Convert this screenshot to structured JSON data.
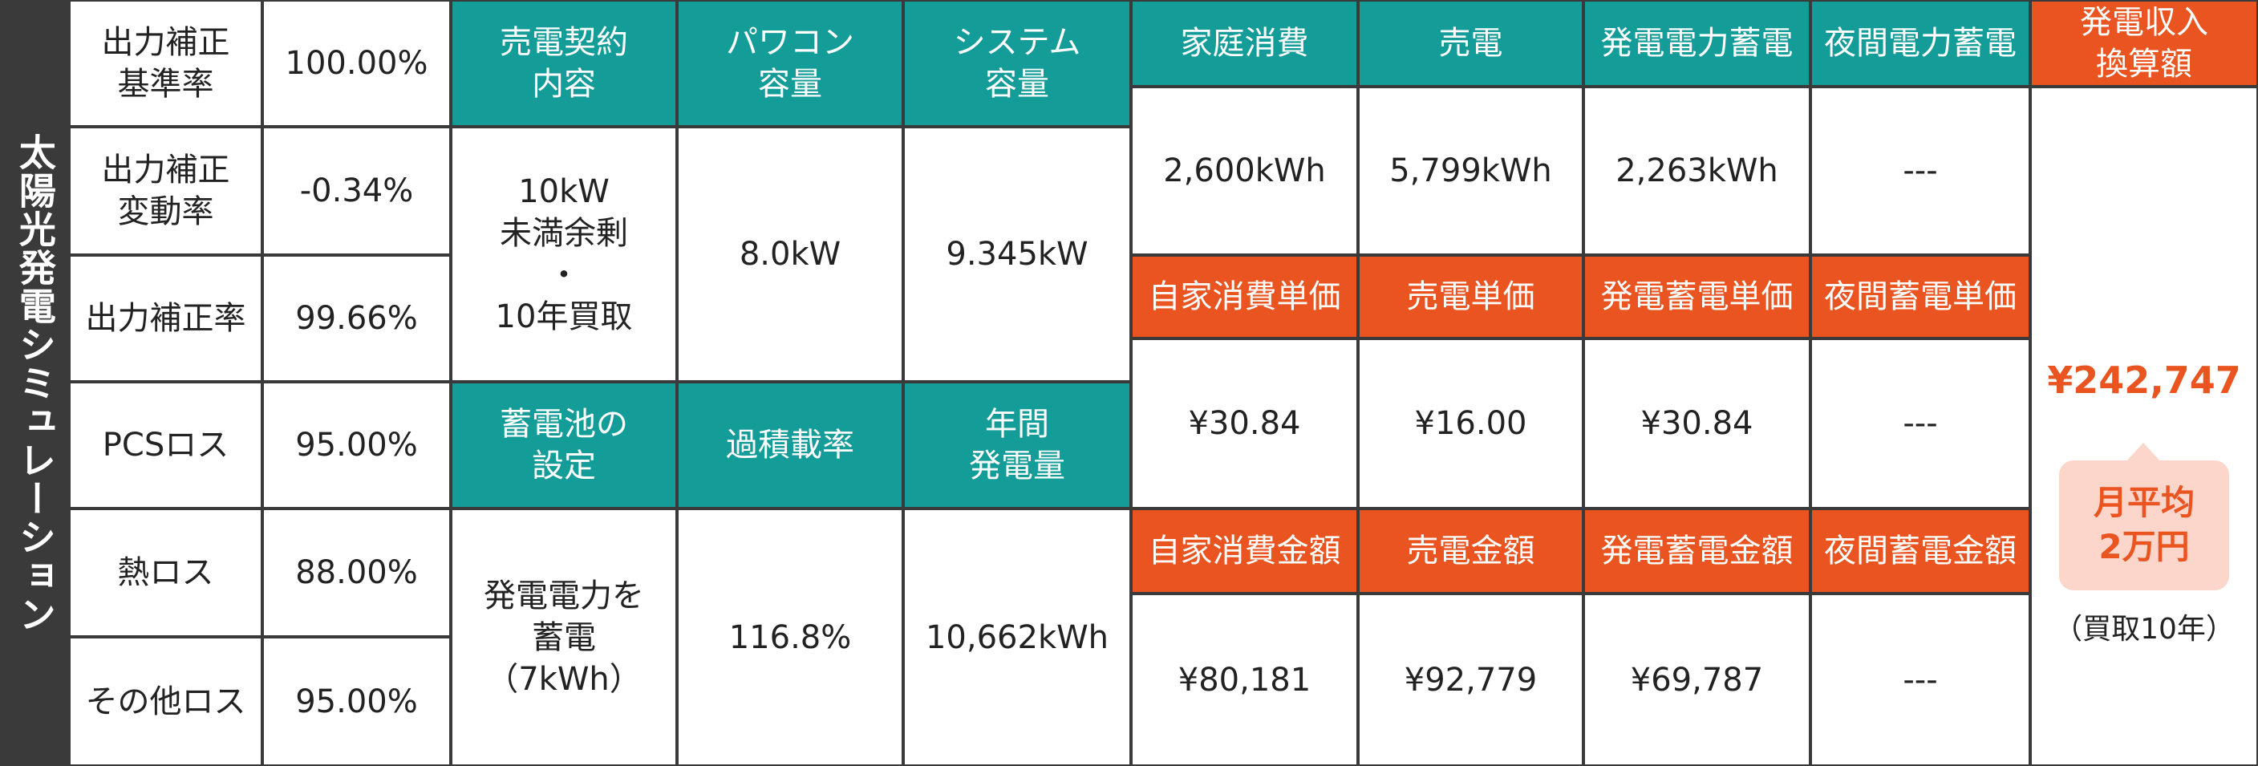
{
  "title": "太陽光発電シミュレーション",
  "left_table": {
    "rows": [
      [
        "出力補正\n基準率",
        "100.00%"
      ],
      [
        "出力補正\n変動率",
        "-0.34%"
      ],
      [
        "出力補正率",
        "99.66%"
      ],
      [
        "PCSロス",
        "95.00%"
      ],
      [
        "熱ロス",
        "88.00%"
      ],
      [
        "その他ロス",
        "95.00%"
      ]
    ]
  },
  "contract": {
    "headers": [
      "売電契約\n内容",
      "パワコン\n容量",
      "システム\n容量"
    ],
    "values": [
      "10kW\n未満余剰\n・\n10年買取",
      "8.0kW",
      "9.345kW"
    ]
  },
  "battery": {
    "headers": [
      "蓄電池の\n設定",
      "過積載率",
      "年間\n発電量"
    ],
    "values": [
      "発電電力を\n蓄電\n（7kWh）",
      "116.8%",
      "10,662kWh"
    ]
  },
  "energy": {
    "headers": [
      "家庭消費",
      "売電",
      "発電電力蓄電",
      "夜間電力蓄電"
    ],
    "values": [
      "2,600kWh",
      "5,799kWh",
      "2,263kWh",
      "---"
    ]
  },
  "unit_price": {
    "headers": [
      "自家消費単価",
      "売電単価",
      "発電蓄電単価",
      "夜間蓄電単価"
    ],
    "values": [
      "¥30.84",
      "¥16.00",
      "¥30.84",
      "---"
    ]
  },
  "amount": {
    "headers": [
      "自家消費金額",
      "売電金額",
      "発電蓄電金額",
      "夜間蓄電金額"
    ],
    "values": [
      "¥80,181",
      "¥92,779",
      "¥69,787",
      "---"
    ]
  },
  "income": {
    "header": "発電収入\n換算額",
    "value": "¥242,747",
    "badge": "月平均\n2万円",
    "note": "（買取10年）"
  }
}
